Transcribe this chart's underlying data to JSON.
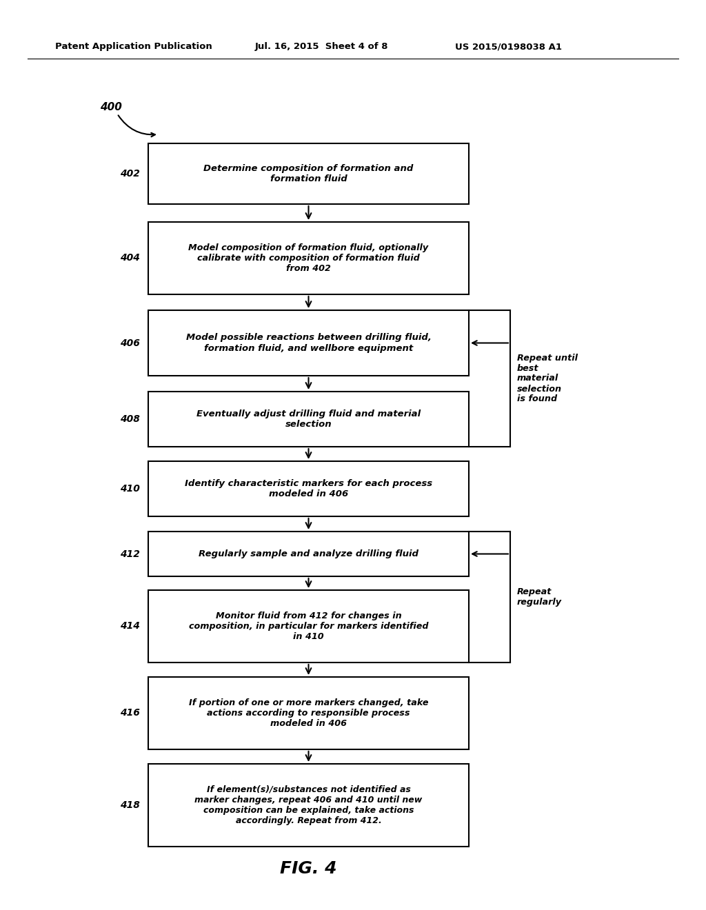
{
  "header_left": "Patent Application Publication",
  "header_middle": "Jul. 16, 2015  Sheet 4 of 8",
  "header_right": "US 2015/0198038 A1",
  "figure_label": "FIG. 4",
  "background_color": "#ffffff",
  "labels": [
    "402",
    "404",
    "406",
    "408",
    "410",
    "412",
    "414",
    "416",
    "418"
  ],
  "texts": [
    "Determine composition of formation and\nformation fluid",
    "Model composition of formation fluid, optionally\ncalibrate with composition of formation fluid\nfrom 402",
    "Model possible reactions between drilling fluid,\nformation fluid, and wellbore equipment",
    "Eventually adjust drilling fluid and material\nselection",
    "Identify characteristic markers for each process\nmodeled in 406",
    "Regularly sample and analyze drilling fluid",
    "Monitor fluid from 412 for changes in\ncomposition, in particular for markers identified\nin 410",
    "If portion of one or more markers changed, take\nactions according to responsible process\nmodeled in 406",
    "If element(s)/substances not identified as\nmarker changes, repeat 406 and 410 until new\ncomposition can be explained, take actions\naccordingly. Repeat from 412."
  ],
  "repeat_until_text": "Repeat until\nbest\nmaterial\nselection\nis found",
  "repeat_regularly_text": "Repeat\nregularly"
}
